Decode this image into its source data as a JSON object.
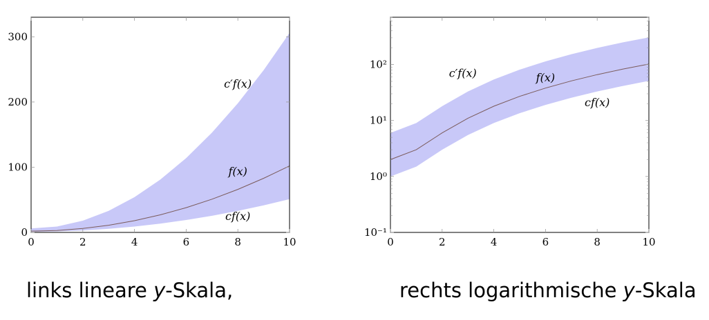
{
  "colors": {
    "band": "#c8c8f8",
    "curve": "#7a5a5a",
    "axis": "#000000",
    "tick": "#999999"
  },
  "chart_data": [
    {
      "type": "area",
      "yscale": "linear",
      "xlim": [
        0,
        10
      ],
      "ylim": [
        0,
        330
      ],
      "xticks": [
        0,
        2,
        4,
        6,
        8,
        10
      ],
      "yticks": [
        0,
        100,
        200,
        300
      ],
      "ytick_labels": [
        "0",
        "100",
        "200",
        "300"
      ],
      "x": [
        0,
        1,
        2,
        3,
        4,
        5,
        6,
        7,
        8,
        9,
        10
      ],
      "series": [
        {
          "label": "f(x)",
          "values": [
            2,
            3,
            6,
            11,
            18,
            27,
            38,
            51,
            66,
            83,
            102
          ]
        },
        {
          "label": "c′f(x)",
          "values": [
            6,
            9,
            18,
            33,
            54,
            81,
            114,
            153,
            198,
            249,
            306
          ]
        },
        {
          "label": "cf(x)",
          "values": [
            1,
            1.5,
            3,
            5.5,
            9,
            13.5,
            19,
            25.5,
            33,
            41.5,
            51
          ]
        }
      ],
      "annotations": [
        {
          "text": "c′f(x)",
          "x": 8,
          "y": 222
        },
        {
          "text": "f(x)",
          "x": 8,
          "y": 88
        },
        {
          "text": "cf(x)",
          "x": 8,
          "y": 19
        }
      ],
      "grid": false
    },
    {
      "type": "area",
      "yscale": "log",
      "xlim": [
        0,
        10
      ],
      "ylim": [
        0.1,
        700
      ],
      "xticks": [
        0,
        2,
        4,
        6,
        8,
        10
      ],
      "yticks": [
        0.1,
        1,
        10,
        100
      ],
      "ytick_labels": [
        "10⁻¹",
        "10⁰",
        "10¹",
        "10²"
      ],
      "x": [
        0,
        1,
        2,
        3,
        4,
        5,
        6,
        7,
        8,
        9,
        10
      ],
      "series": [
        {
          "label": "f(x)",
          "values": [
            2,
            3,
            6,
            11,
            18,
            27,
            38,
            51,
            66,
            83,
            102
          ]
        },
        {
          "label": "c′f(x)",
          "values": [
            6,
            9,
            18,
            33,
            54,
            81,
            114,
            153,
            198,
            249,
            306
          ]
        },
        {
          "label": "cf(x)",
          "values": [
            1,
            1.5,
            3,
            5.5,
            9,
            13.5,
            19,
            25.5,
            33,
            41.5,
            51
          ]
        }
      ],
      "annotations": [
        {
          "text": "c′f(x)",
          "x": 2.8,
          "y": 60
        },
        {
          "text": "f(x)",
          "x": 6,
          "y": 50
        },
        {
          "text": "cf(x)",
          "x": 8,
          "y": 18
        }
      ],
      "grid": false
    }
  ],
  "captions": {
    "left_before": "links lineare ",
    "left_var": "y",
    "left_after": "-Skala,",
    "right_before": "rechts logarithmische ",
    "right_var": "y",
    "right_after": "-Skala"
  }
}
